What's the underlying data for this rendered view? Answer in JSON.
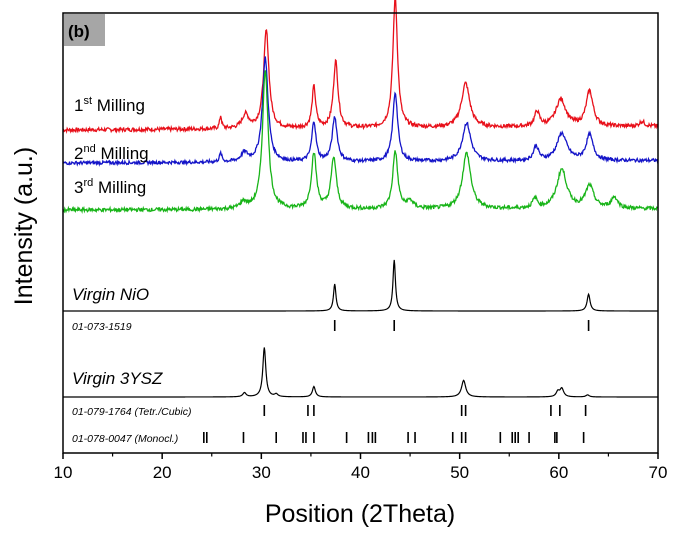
{
  "chart_data": {
    "type": "line",
    "panel_label": "(b)",
    "xlabel": "Position (2Theta)",
    "ylabel": "Intensity (a.u.)",
    "xlim": [
      10,
      70
    ],
    "xticks": [
      "10",
      "20",
      "30",
      "40",
      "50",
      "60",
      "70"
    ],
    "yticks": "none",
    "grid": false,
    "colors": {
      "first": "#e8101a",
      "second": "#1414c8",
      "third": "#18b418",
      "reference": "#000000",
      "panel_tag_bg": "#a6a6a6"
    },
    "series": [
      {
        "name": "1st Milling",
        "label_base": "1",
        "label_sup": "st",
        "label_rest": " Milling",
        "color_key": "first",
        "baseline": 0.0,
        "noise": 0.04,
        "peaks": [
          [
            25.9,
            0.13,
            0.12
          ],
          [
            28.4,
            0.14,
            0.4
          ],
          [
            30.5,
            1.0,
            0.32
          ],
          [
            35.3,
            0.42,
            0.22
          ],
          [
            37.5,
            0.68,
            0.28
          ],
          [
            43.5,
            1.33,
            0.28
          ],
          [
            50.6,
            0.45,
            0.5
          ],
          [
            57.8,
            0.15,
            0.3
          ],
          [
            60.2,
            0.28,
            0.6
          ],
          [
            63.1,
            0.36,
            0.42
          ],
          [
            68.4,
            0.05,
            0.3
          ]
        ]
      },
      {
        "name": "2nd Milling",
        "label_base": "2",
        "label_sup": "nd",
        "label_rest": " Milling",
        "color_key": "second",
        "baseline": 0.0,
        "noise": 0.04,
        "peaks": [
          [
            25.9,
            0.1,
            0.15
          ],
          [
            28.3,
            0.1,
            0.4
          ],
          [
            30.4,
            1.22,
            0.34
          ],
          [
            35.3,
            0.47,
            0.25
          ],
          [
            37.4,
            0.52,
            0.3
          ],
          [
            43.5,
            0.81,
            0.3
          ],
          [
            50.7,
            0.45,
            0.5
          ],
          [
            57.7,
            0.17,
            0.3
          ],
          [
            60.3,
            0.32,
            0.6
          ],
          [
            63.1,
            0.3,
            0.42
          ]
        ]
      },
      {
        "name": "3rd Milling",
        "label_base": "3",
        "label_sup": "rd",
        "label_rest": " Milling",
        "color_key": "third",
        "baseline": 0.0,
        "noise": 0.04,
        "peaks": [
          [
            28.2,
            0.07,
            0.4
          ],
          [
            30.4,
            1.5,
            0.34
          ],
          [
            35.3,
            0.6,
            0.3
          ],
          [
            37.3,
            0.55,
            0.32
          ],
          [
            43.5,
            0.62,
            0.3
          ],
          [
            45.0,
            0.08,
            0.4
          ],
          [
            50.7,
            0.6,
            0.5
          ],
          [
            57.6,
            0.1,
            0.3
          ],
          [
            60.3,
            0.42,
            0.6
          ],
          [
            63.1,
            0.24,
            0.5
          ],
          [
            65.6,
            0.12,
            0.4
          ]
        ]
      },
      {
        "name": "Virgin NiO",
        "label": "Virgin NiO",
        "color_key": "reference",
        "baseline": 0.0,
        "noise": 0.0,
        "peaks": [
          [
            37.4,
            0.45,
            0.15
          ],
          [
            43.4,
            0.85,
            0.15
          ],
          [
            63.0,
            0.28,
            0.18
          ]
        ]
      },
      {
        "name": "Virgin 3YSZ",
        "label": "Virgin 3YSZ",
        "color_key": "reference",
        "baseline": 0.0,
        "noise": 0.0,
        "peaks": [
          [
            28.3,
            0.08,
            0.2
          ],
          [
            30.3,
            0.95,
            0.18
          ],
          [
            31.5,
            0.05,
            0.2
          ],
          [
            35.3,
            0.2,
            0.18
          ],
          [
            50.4,
            0.32,
            0.25
          ],
          [
            59.9,
            0.1,
            0.2
          ],
          [
            60.3,
            0.16,
            0.22
          ],
          [
            62.9,
            0.04,
            0.2
          ]
        ]
      }
    ],
    "reference_patterns": [
      {
        "label": "01-073-1519",
        "positions": [
          37.4,
          43.4,
          63.0
        ]
      },
      {
        "label": "01-079-1764 (Tetr./Cubic)",
        "positions": [
          30.3,
          34.7,
          35.3,
          50.2,
          50.6,
          59.2,
          60.1,
          62.7
        ]
      },
      {
        "label": "01-078-0047 (Monocl.)",
        "positions": [
          24.2,
          24.5,
          28.2,
          31.5,
          34.2,
          34.5,
          35.3,
          38.6,
          40.8,
          41.2,
          41.5,
          44.8,
          45.5,
          49.3,
          50.2,
          50.6,
          54.1,
          55.3,
          55.6,
          55.9,
          57.0,
          59.6,
          59.8,
          62.5
        ]
      }
    ]
  }
}
